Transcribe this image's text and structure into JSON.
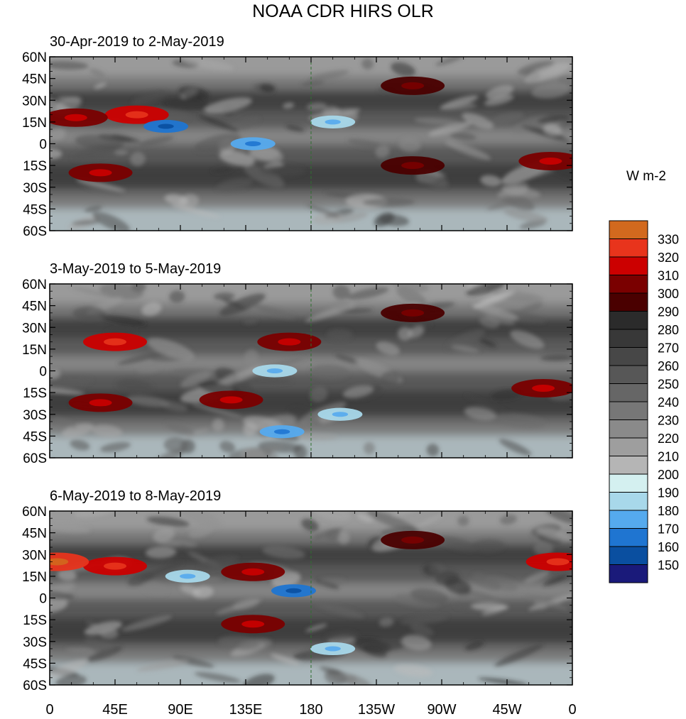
{
  "chart_data": {
    "type": "heatmap",
    "title": "NOAA CDR HIRS OLR",
    "units": "W m-2",
    "panels": [
      {
        "period": "30-Apr-2019 to 2-May-2019",
        "features": [
          {
            "lon": 60,
            "lat": 20,
            "olr": 315
          },
          {
            "lon": 18,
            "lat": 18,
            "olr": 305
          },
          {
            "lon": 250,
            "lat": 40,
            "olr": 290
          },
          {
            "lon": 140,
            "lat": 0,
            "olr": 175
          },
          {
            "lon": 80,
            "lat": 12,
            "olr": 160
          },
          {
            "lon": 250,
            "lat": -15,
            "olr": 295
          },
          {
            "lon": 345,
            "lat": -12,
            "olr": 300
          },
          {
            "lon": 35,
            "lat": -20,
            "olr": 305
          },
          {
            "lon": 195,
            "lat": 15,
            "olr": 180
          }
        ]
      },
      {
        "period": "3-May-2019 to 5-May-2019",
        "features": [
          {
            "lon": 45,
            "lat": 20,
            "olr": 315
          },
          {
            "lon": 250,
            "lat": 40,
            "olr": 290
          },
          {
            "lon": 155,
            "lat": 0,
            "olr": 180
          },
          {
            "lon": 165,
            "lat": 20,
            "olr": 300
          },
          {
            "lon": 160,
            "lat": -42,
            "olr": 175
          },
          {
            "lon": 125,
            "lat": -20,
            "olr": 300
          },
          {
            "lon": 35,
            "lat": -22,
            "olr": 300
          },
          {
            "lon": 340,
            "lat": -12,
            "olr": 300
          },
          {
            "lon": 200,
            "lat": -30,
            "olr": 180
          }
        ]
      },
      {
        "period": "6-May-2019 to 8-May-2019",
        "features": [
          {
            "lon": 45,
            "lat": 22,
            "olr": 315
          },
          {
            "lon": 5,
            "lat": 25,
            "olr": 320
          },
          {
            "lon": 250,
            "lat": 40,
            "olr": 290
          },
          {
            "lon": 168,
            "lat": 5,
            "olr": 160
          },
          {
            "lon": 195,
            "lat": -35,
            "olr": 180
          },
          {
            "lon": 140,
            "lat": -18,
            "olr": 300
          },
          {
            "lon": 140,
            "lat": 18,
            "olr": 300
          },
          {
            "lon": 95,
            "lat": 15,
            "olr": 180
          },
          {
            "lon": 350,
            "lat": 25,
            "olr": 315
          }
        ]
      }
    ],
    "lat_ticks": [
      "60N",
      "45N",
      "30N",
      "15N",
      "0",
      "15S",
      "30S",
      "45S",
      "60S"
    ],
    "lat_values": [
      60,
      45,
      30,
      15,
      0,
      -15,
      -30,
      -45,
      -60
    ],
    "lon_ticks": [
      "0",
      "45E",
      "90E",
      "135E",
      "180",
      "135W",
      "90W",
      "45W",
      "0"
    ],
    "lon_values": [
      0,
      45,
      90,
      135,
      180,
      225,
      270,
      315,
      360
    ],
    "xlim": [
      0,
      360
    ],
    "ylim": [
      -60,
      60
    ],
    "colorbar": {
      "levels": [
        "330",
        "320",
        "310",
        "300",
        "290",
        "280",
        "270",
        "260",
        "250",
        "240",
        "230",
        "220",
        "210",
        "200",
        "190",
        "180",
        "170",
        "160",
        "150"
      ],
      "colors": [
        "#d2691e",
        "#e8341c",
        "#cc0000",
        "#7a0000",
        "#4a0000",
        "#2b2b2b",
        "#383838",
        "#474747",
        "#575757",
        "#666666",
        "#777777",
        "#8a8a8a",
        "#9e9e9e",
        "#b5b5b5",
        "#d4f0f0",
        "#a8d8ea",
        "#55aaee",
        "#1f75d1",
        "#0a4fa0",
        "#1a1a7a"
      ]
    }
  }
}
